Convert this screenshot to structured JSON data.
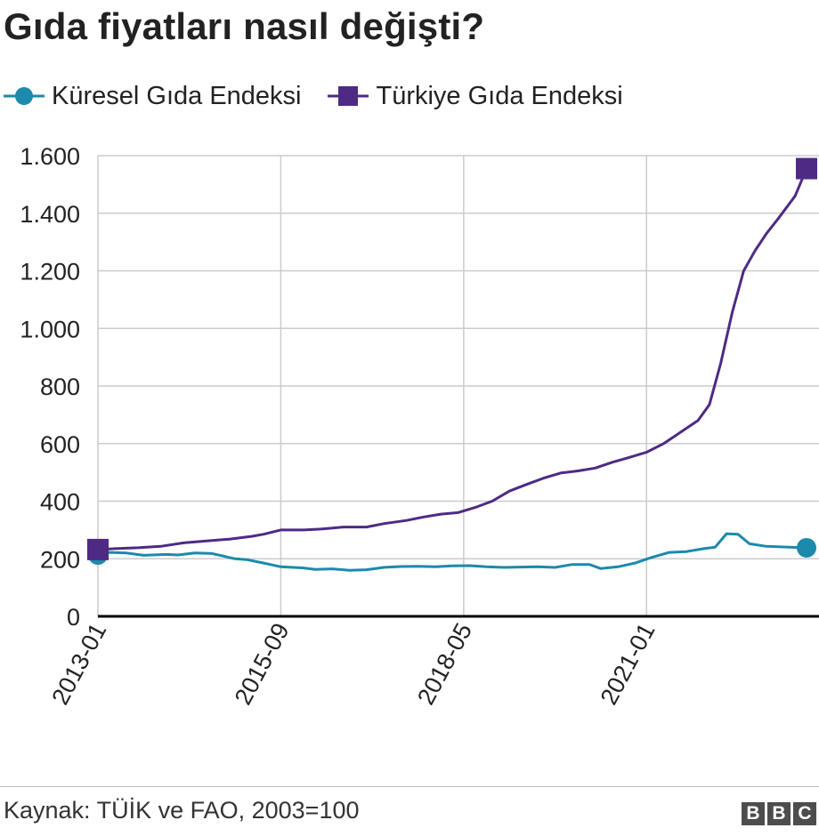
{
  "title": "Gıda fiyatları nasıl değişti?",
  "source": "Kaynak: TÜİK ve FAO, 2003=100",
  "logo_letters": [
    "B",
    "B",
    "C"
  ],
  "colors": {
    "global": "#1b8aab",
    "turkey": "#4e2a84",
    "grid": "#cccccc",
    "axis": "#000000"
  },
  "chart_data": {
    "type": "line",
    "title": "Gıda fiyatları nasıl değişti?",
    "xlabel": "",
    "ylabel": "",
    "ylim": [
      0,
      1600
    ],
    "y_ticks": [
      0,
      200,
      400,
      600,
      800,
      1000,
      1200,
      1400,
      1600
    ],
    "y_tick_labels": [
      "0",
      "200",
      "400",
      "600",
      "800",
      "1.000",
      "1.200",
      "1.400",
      "1.600"
    ],
    "x_range": [
      "2013-01",
      "2023-05"
    ],
    "x_ticks": [
      "2013-01",
      "2015-09",
      "2018-05",
      "2021-01"
    ],
    "grid": true,
    "legend_position": "top-left",
    "series": [
      {
        "name": "Küresel Gıda Endeksi",
        "marker": "circle",
        "points": [
          [
            "2013-01",
            213
          ],
          [
            "2013-03",
            222
          ],
          [
            "2013-06",
            220
          ],
          [
            "2013-09",
            212
          ],
          [
            "2014-01",
            215
          ],
          [
            "2014-03",
            213
          ],
          [
            "2014-06",
            220
          ],
          [
            "2014-09",
            218
          ],
          [
            "2015-01",
            200
          ],
          [
            "2015-03",
            197
          ],
          [
            "2015-06",
            185
          ],
          [
            "2015-09",
            172
          ],
          [
            "2016-01",
            168
          ],
          [
            "2016-03",
            163
          ],
          [
            "2016-06",
            165
          ],
          [
            "2016-09",
            160
          ],
          [
            "2016-12",
            162
          ],
          [
            "2017-03",
            170
          ],
          [
            "2017-06",
            173
          ],
          [
            "2017-09",
            174
          ],
          [
            "2017-12",
            172
          ],
          [
            "2018-03",
            175
          ],
          [
            "2018-06",
            176
          ],
          [
            "2018-09",
            172
          ],
          [
            "2018-12",
            170
          ],
          [
            "2019-03",
            171
          ],
          [
            "2019-06",
            172
          ],
          [
            "2019-09",
            170
          ],
          [
            "2019-12",
            180
          ],
          [
            "2020-03",
            180
          ],
          [
            "2020-05",
            166
          ],
          [
            "2020-08",
            172
          ],
          [
            "2020-11",
            185
          ],
          [
            "2021-02",
            205
          ],
          [
            "2021-05",
            222
          ],
          [
            "2021-08",
            225
          ],
          [
            "2021-11",
            235
          ],
          [
            "2022-01",
            240
          ],
          [
            "2022-03",
            287
          ],
          [
            "2022-05",
            285
          ],
          [
            "2022-07",
            252
          ],
          [
            "2022-10",
            243
          ],
          [
            "2023-02",
            240
          ],
          [
            "2023-05",
            238
          ]
        ]
      },
      {
        "name": "Türkiye Gıda Endeksi",
        "marker": "square",
        "points": [
          [
            "2013-01",
            232
          ],
          [
            "2013-04",
            235
          ],
          [
            "2013-08",
            238
          ],
          [
            "2013-12",
            243
          ],
          [
            "2014-04",
            255
          ],
          [
            "2014-08",
            262
          ],
          [
            "2014-12",
            268
          ],
          [
            "2015-04",
            278
          ],
          [
            "2015-06",
            285
          ],
          [
            "2015-09",
            300
          ],
          [
            "2016-01",
            300
          ],
          [
            "2016-04",
            303
          ],
          [
            "2016-08",
            310
          ],
          [
            "2016-12",
            310
          ],
          [
            "2017-03",
            322
          ],
          [
            "2017-07",
            333
          ],
          [
            "2017-10",
            345
          ],
          [
            "2018-01",
            355
          ],
          [
            "2018-04",
            360
          ],
          [
            "2018-07",
            378
          ],
          [
            "2018-10",
            400
          ],
          [
            "2019-01",
            435
          ],
          [
            "2019-04",
            458
          ],
          [
            "2019-07",
            480
          ],
          [
            "2019-10",
            498
          ],
          [
            "2020-01",
            505
          ],
          [
            "2020-04",
            515
          ],
          [
            "2020-07",
            535
          ],
          [
            "2020-10",
            552
          ],
          [
            "2021-01",
            570
          ],
          [
            "2021-04",
            600
          ],
          [
            "2021-07",
            640
          ],
          [
            "2021-10",
            680
          ],
          [
            "2021-12",
            735
          ],
          [
            "2022-02",
            880
          ],
          [
            "2022-04",
            1055
          ],
          [
            "2022-06",
            1200
          ],
          [
            "2022-08",
            1270
          ],
          [
            "2022-10",
            1330
          ],
          [
            "2022-12",
            1380
          ],
          [
            "2023-03",
            1460
          ],
          [
            "2023-05",
            1555
          ]
        ]
      }
    ]
  }
}
